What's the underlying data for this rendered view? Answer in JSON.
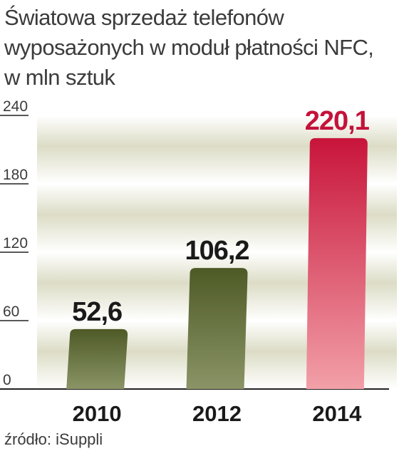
{
  "title_lines": [
    "Światowa sprzedaż telefonów",
    "wyposażonych w moduł płatności NFC,",
    "w mln sztuk"
  ],
  "source": "źródło: iSuppli",
  "colors": {
    "bar_default_top": "#4e5a26",
    "bar_default_bottom": "#8a9466",
    "bar_highlight_top": "#c8143a",
    "bar_highlight_bottom": "#f2a0a8",
    "highlight_label": "#c4123a",
    "label": "#1a1a1a",
    "band": "#dcdcc6",
    "grid": "#ffffff",
    "axis": "#222222"
  },
  "chart_data": {
    "type": "bar",
    "title": "Światowa sprzedaż telefonów wyposażonych w moduł płatności NFC, w mln sztuk",
    "categories": [
      "2010",
      "2012",
      "2014"
    ],
    "values": [
      52.6,
      106.2,
      220.1
    ],
    "value_labels": [
      "52,6",
      "106,2",
      "220,1"
    ],
    "highlight_index": 2,
    "ylim": [
      0,
      240
    ],
    "yticks": [
      0,
      60,
      120,
      180,
      240
    ],
    "ytick_labels": [
      "0",
      "60",
      "120",
      "180",
      "240"
    ],
    "xlabel": "",
    "ylabel": "",
    "grid": true,
    "legend": false
  }
}
